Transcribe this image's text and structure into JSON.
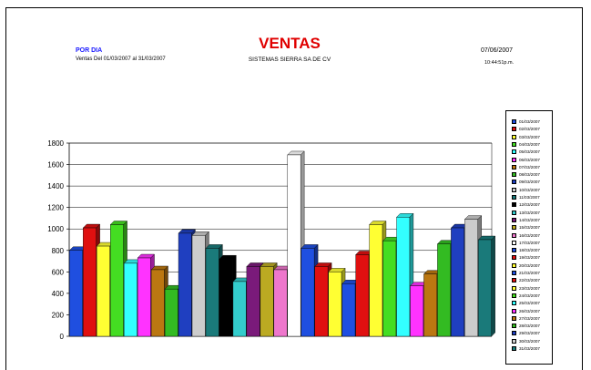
{
  "header": {
    "report_type": "POR DIA",
    "range": "Ventas Del 01/03/2007 al 31/03/2007",
    "title": "VENTAS",
    "company": "SISTEMAS SIERRA SA DE CV",
    "date": "07/06/2007",
    "time": "10:44:51p.m."
  },
  "chart_data": {
    "type": "bar",
    "title": "VENTAS",
    "ylim": [
      0,
      1800
    ],
    "yticks": [
      0,
      200,
      400,
      600,
      800,
      1000,
      1200,
      1400,
      1600,
      1800
    ],
    "grid": true,
    "legend_position": "right",
    "series": [
      {
        "name": "01/03/2007",
        "value": 800,
        "color": "#1f4fe0"
      },
      {
        "name": "02/03/2007",
        "value": 1010,
        "color": "#e01010"
      },
      {
        "name": "03/03/2007",
        "value": 840,
        "color": "#ffff33"
      },
      {
        "name": "04/03/2007",
        "value": 1040,
        "color": "#44dd22"
      },
      {
        "name": "05/03/2007",
        "value": 680,
        "color": "#33ffff"
      },
      {
        "name": "06/03/2007",
        "value": 730,
        "color": "#ff33ff"
      },
      {
        "name": "07/03/2007",
        "value": 620,
        "color": "#bb7711"
      },
      {
        "name": "08/03/2007",
        "value": 440,
        "color": "#33bb22"
      },
      {
        "name": "09/03/2007",
        "value": 960,
        "color": "#1f3fc0"
      },
      {
        "name": "10/03/2007",
        "value": 940,
        "color": "#cccccc"
      },
      {
        "name": "11/03/2007",
        "value": 820,
        "color": "#1a7a7a"
      },
      {
        "name": "12/03/2007",
        "value": 720,
        "color": "#000000"
      },
      {
        "name": "13/03/2007",
        "value": 510,
        "color": "#33cccc"
      },
      {
        "name": "14/03/2007",
        "value": 650,
        "color": "#7a1a7a"
      },
      {
        "name": "15/03/2007",
        "value": 650,
        "color": "#bbaa22"
      },
      {
        "name": "16/03/2007",
        "value": 620,
        "color": "#ee77cc"
      },
      {
        "name": "17/03/2007",
        "value": 1690,
        "color": "#ffffff"
      },
      {
        "name": "18/03/2007",
        "value": 820,
        "color": "#1f4fe0"
      },
      {
        "name": "19/03/2007",
        "value": 650,
        "color": "#e01010"
      },
      {
        "name": "20/03/2007",
        "value": 600,
        "color": "#ffff33"
      },
      {
        "name": "21/03/2007",
        "value": 490,
        "color": "#1f4fe0"
      },
      {
        "name": "22/03/2007",
        "value": 760,
        "color": "#e01010"
      },
      {
        "name": "23/03/2007",
        "value": 1040,
        "color": "#ffff33"
      },
      {
        "name": "24/03/2007",
        "value": 890,
        "color": "#44dd22"
      },
      {
        "name": "25/03/2007",
        "value": 1110,
        "color": "#33ffff"
      },
      {
        "name": "26/03/2007",
        "value": 470,
        "color": "#ff33ff"
      },
      {
        "name": "27/03/2007",
        "value": 580,
        "color": "#bb7711"
      },
      {
        "name": "28/03/2007",
        "value": 860,
        "color": "#33bb22"
      },
      {
        "name": "29/03/2007",
        "value": 1010,
        "color": "#1f3fc0"
      },
      {
        "name": "30/03/2007",
        "value": 1090,
        "color": "#cccccc"
      },
      {
        "name": "31/03/2007",
        "value": 900,
        "color": "#1a7a7a"
      }
    ]
  }
}
